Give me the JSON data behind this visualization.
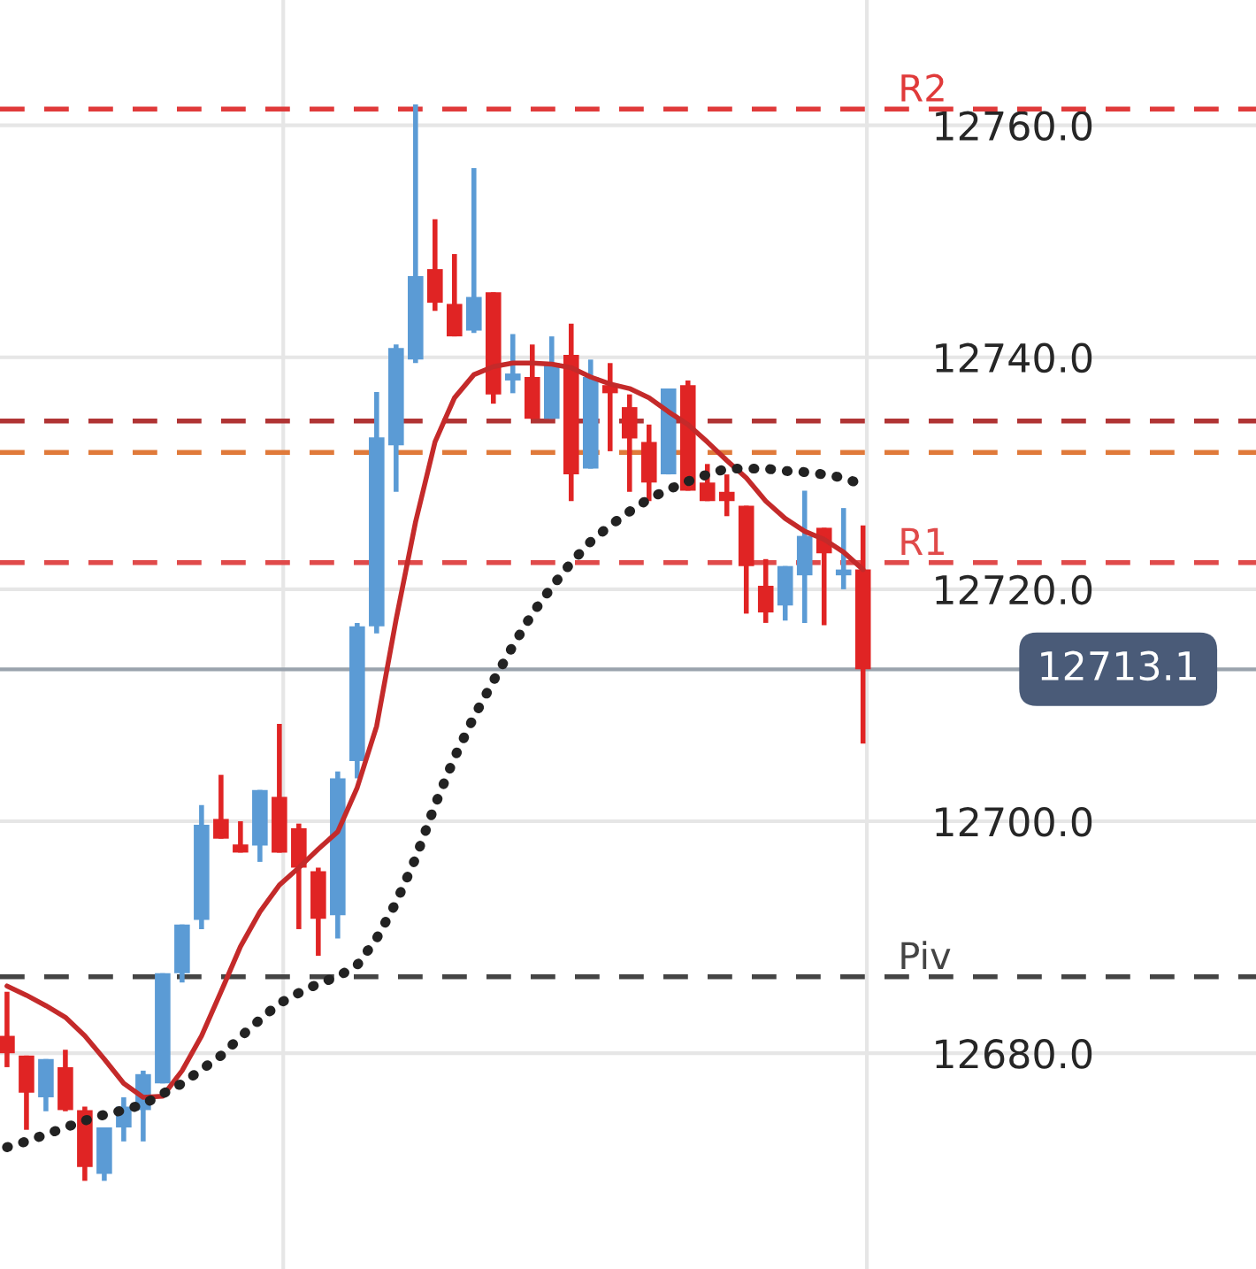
{
  "chart_data": {
    "type": "candlestick",
    "categories": [
      null,
      null,
      null,
      null,
      null,
      null,
      null,
      null,
      null,
      null,
      null,
      null,
      null,
      null,
      null,
      null,
      null,
      null,
      null,
      null,
      null,
      null,
      null,
      null,
      null,
      null,
      null,
      null,
      null,
      null,
      null,
      null,
      null,
      null,
      null,
      null,
      null,
      null,
      null,
      null,
      null,
      null,
      null,
      null,
      null
    ],
    "ohlc": [
      [
        12681.5,
        12685.3,
        12678.8,
        12680.0
      ],
      [
        12679.8,
        12679.8,
        12673.4,
        12676.6
      ],
      [
        12676.2,
        12679.5,
        12675.0,
        12679.5
      ],
      [
        12678.8,
        12680.3,
        12675.0,
        12675.1
      ],
      [
        12675.1,
        12675.4,
        12669.0,
        12670.2
      ],
      [
        12669.6,
        12673.6,
        12669.0,
        12673.6
      ],
      [
        12673.6,
        12676.2,
        12672.4,
        12675.4
      ],
      [
        12675.1,
        12678.5,
        12672.4,
        12678.2
      ],
      [
        12677.4,
        12686.9,
        12677.4,
        12686.9
      ],
      [
        12686.9,
        12691.1,
        12686.1,
        12691.1
      ],
      [
        12691.5,
        12701.4,
        12690.7,
        12699.7
      ],
      [
        12700.2,
        12704.0,
        12698.5,
        12698.5
      ],
      [
        12698.0,
        12700.0,
        12697.3,
        12697.3
      ],
      [
        12697.9,
        12702.7,
        12696.5,
        12702.7
      ],
      [
        12702.1,
        12708.4,
        12697.3,
        12697.3
      ],
      [
        12699.4,
        12699.8,
        12690.7,
        12696.0
      ],
      [
        12695.7,
        12696.0,
        12688.4,
        12691.6
      ],
      [
        12691.9,
        12704.3,
        12689.9,
        12703.7
      ],
      [
        12705.2,
        12717.1,
        12703.7,
        12716.8
      ],
      [
        12716.8,
        12737.0,
        12716.2,
        12733.1
      ],
      [
        12732.4,
        12741.1,
        12728.4,
        12740.8
      ],
      [
        12739.8,
        12761.8,
        12739.5,
        12747.0
      ],
      [
        12747.6,
        12751.9,
        12744.0,
        12744.7
      ],
      [
        12744.6,
        12748.9,
        12741.8,
        12741.8
      ],
      [
        12742.3,
        12756.3,
        12742.1,
        12745.2
      ],
      [
        12745.6,
        12745.6,
        12736.0,
        12736.8
      ],
      [
        12738.0,
        12742.0,
        12736.9,
        12738.6
      ],
      [
        12738.3,
        12741.1,
        12734.7,
        12734.7
      ],
      [
        12734.7,
        12741.8,
        12734.7,
        12739.5
      ],
      [
        12740.2,
        12742.9,
        12727.6,
        12729.9
      ],
      [
        12730.4,
        12739.8,
        12730.4,
        12738.3
      ],
      [
        12737.6,
        12739.5,
        12731.9,
        12736.9
      ],
      [
        12735.7,
        12736.8,
        12728.4,
        12733.0
      ],
      [
        12732.7,
        12734.2,
        12727.6,
        12729.2
      ],
      [
        12729.9,
        12737.3,
        12729.9,
        12737.3
      ],
      [
        12737.6,
        12738.0,
        12728.5,
        12728.5
      ],
      [
        12729.2,
        12730.8,
        12727.6,
        12727.6
      ],
      [
        12728.4,
        12729.9,
        12726.3,
        12727.6
      ],
      [
        12727.2,
        12727.2,
        12717.9,
        12722.0
      ],
      [
        12720.3,
        12722.6,
        12717.1,
        12718.0
      ],
      [
        12718.6,
        12722.0,
        12717.3,
        12722.0
      ],
      [
        12721.2,
        12728.5,
        12717.1,
        12724.6
      ],
      [
        12725.3,
        12725.3,
        12716.9,
        12723.1
      ],
      [
        12721.2,
        12727.0,
        12720.0,
        12721.7
      ],
      [
        12721.7,
        12725.5,
        12706.7,
        12713.1
      ]
    ],
    "colors": [
      "#e02424",
      "#e02424",
      "#5b9bd5",
      "#e02424",
      "#e02424",
      "#5b9bd5",
      "#5b9bd5",
      "#5b9bd5",
      "#5b9bd5",
      "#5b9bd5",
      "#5b9bd5",
      "#e02424",
      "#e02424",
      "#5b9bd5",
      "#e02424",
      "#e02424",
      "#e02424",
      "#5b9bd5",
      "#5b9bd5",
      "#5b9bd5",
      "#5b9bd5",
      "#5b9bd5",
      "#e02424",
      "#e02424",
      "#5b9bd5",
      "#e02424",
      "#5b9bd5",
      "#e02424",
      "#5b9bd5",
      "#e02424",
      "#5b9bd5",
      "#e02424",
      "#e02424",
      "#e02424",
      "#5b9bd5",
      "#e02424",
      "#e02424",
      "#e02424",
      "#e02424",
      "#e02424",
      "#5b9bd5",
      "#5b9bd5",
      "#e02424",
      "#5b9bd5",
      "#e02424"
    ],
    "series": [
      {
        "type": "line",
        "color": "#c42a2a",
        "line_style": "solid",
        "values": [
          12685.8,
          12685.0,
          12684.1,
          12683.1,
          12681.5,
          12679.5,
          12677.4,
          12676.2,
          12676.3,
          12678.5,
          12681.5,
          12685.3,
          12689.2,
          12692.2,
          12694.5,
          12696.0,
          12697.6,
          12699.1,
          12702.9,
          12708.2,
          12717.4,
          12725.8,
          12732.7,
          12736.5,
          12738.5,
          12739.2,
          12739.5,
          12739.5,
          12739.4,
          12739.1,
          12738.3,
          12737.7,
          12737.3,
          12736.5,
          12735.3,
          12734.2,
          12732.7,
          12731.1,
          12729.6,
          12727.6,
          12726.1,
          12725.0,
          12724.3,
          12723.2,
          12721.7
        ]
      },
      {
        "type": "line",
        "color": "#222222",
        "line_style": "dotted",
        "values": [
          12671.9,
          12672.4,
          12673.0,
          12673.6,
          12674.2,
          12674.7,
          12675.1,
          12675.6,
          12676.5,
          12677.4,
          12678.6,
          12679.8,
          12681.4,
          12682.9,
          12684.3,
          12685.2,
          12686.0,
          12686.6,
          12687.6,
          12689.9,
          12693.0,
          12696.8,
          12701.4,
          12705.5,
          12709.0,
          12712.1,
          12715.1,
          12717.9,
          12720.2,
          12722.3,
          12724.1,
          12725.5,
          12726.7,
          12727.8,
          12728.6,
          12729.3,
          12729.9,
          12730.4,
          12730.4,
          12730.4,
          12730.2,
          12730.1,
          12729.9,
          12729.6,
          12729.0
        ]
      }
    ],
    "ref_lines": [
      {
        "axis": "y",
        "value": 12761.4,
        "label": "R2",
        "color": "#e03a3a",
        "line_style": "dashed"
      },
      {
        "axis": "y",
        "value": 12734.5,
        "label": null,
        "color": "#b03434",
        "line_style": "dashed"
      },
      {
        "axis": "y",
        "value": 12731.8,
        "label": null,
        "color": "#e07a3a",
        "line_style": "dashed"
      },
      {
        "axis": "y",
        "value": 12722.3,
        "label": "R1",
        "color": "#e04a4a",
        "line_style": "dashed"
      },
      {
        "axis": "y",
        "value": 12686.6,
        "label": "Piv",
        "color": "#444444",
        "line_style": "dashed"
      },
      {
        "axis": "y",
        "value": 12713.1,
        "label": "12713.1",
        "color": "#9aa3ad",
        "line_style": "solid"
      }
    ],
    "ylim": [
      12661.4,
      12770.8
    ],
    "yticks": [
      {
        "value": 12680,
        "label": "12680.0"
      },
      {
        "value": 12700,
        "label": "12700.0"
      },
      {
        "value": 12720,
        "label": "12720.0"
      },
      {
        "value": 12740,
        "label": "12740.0"
      },
      {
        "value": 12760,
        "label": "12760.0"
      }
    ],
    "grid": "y",
    "tick_labels": "y"
  }
}
